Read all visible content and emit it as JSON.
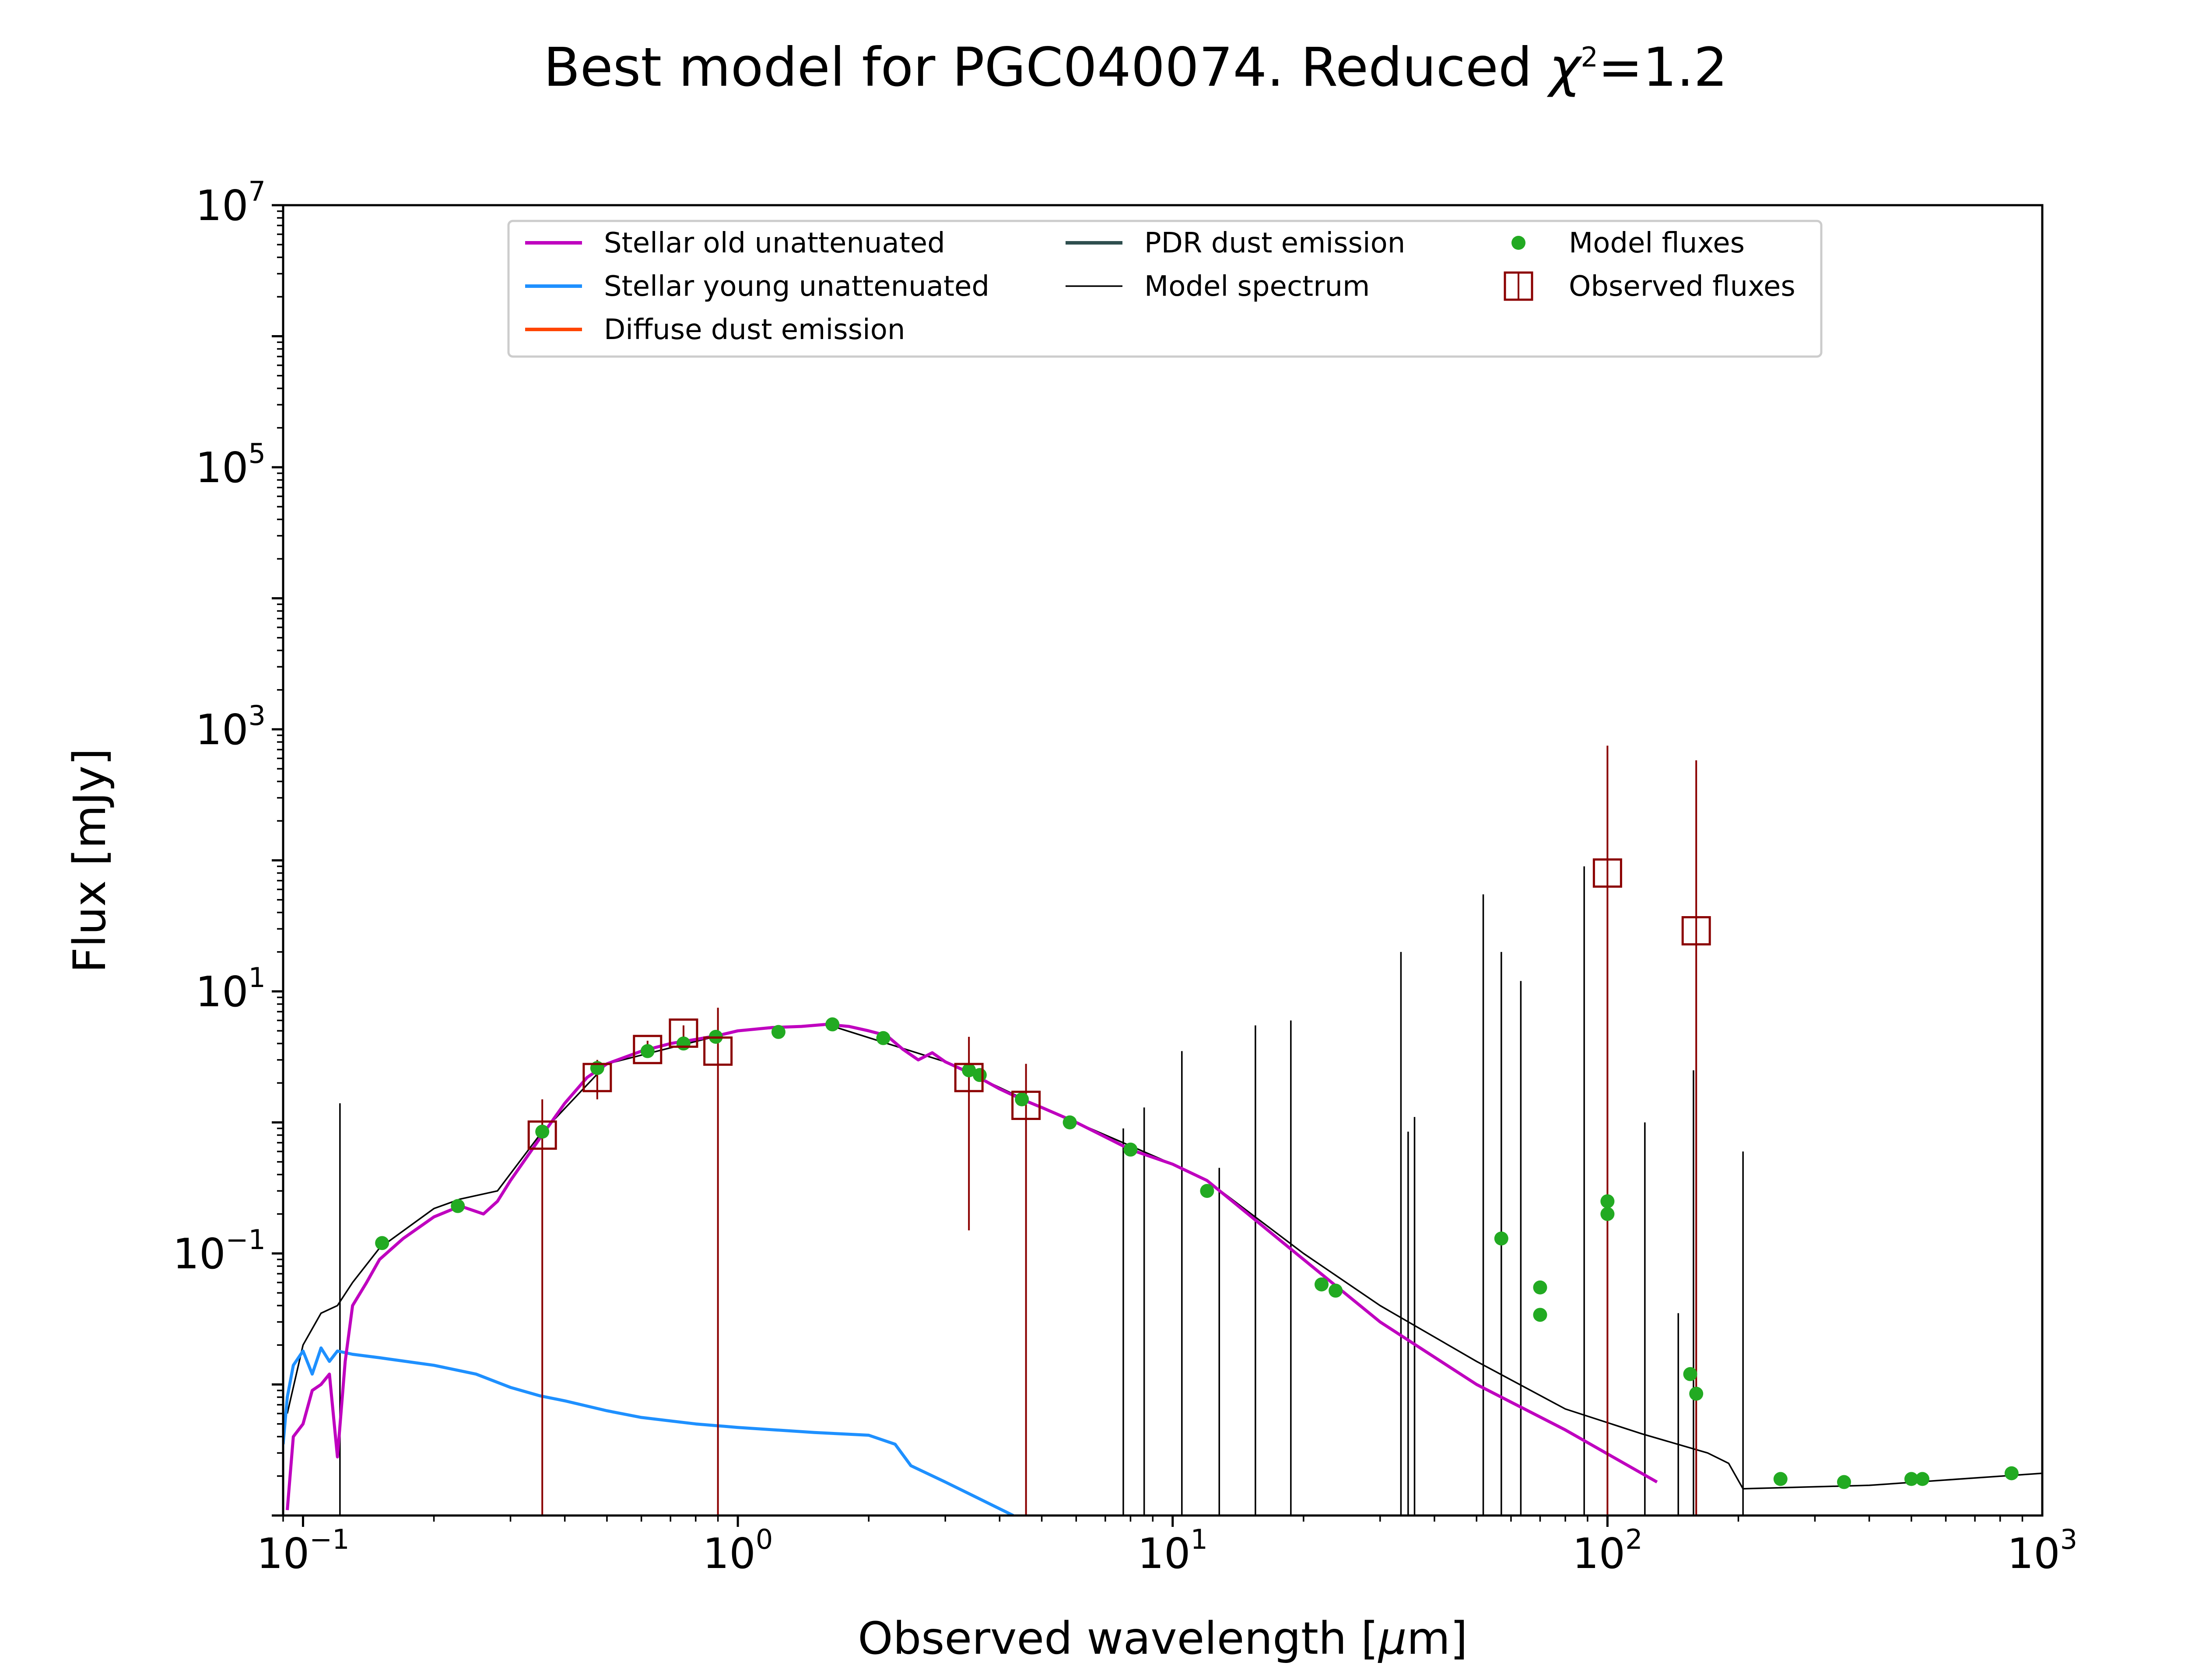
{
  "chart_data": {
    "type": "line",
    "title": {
      "prefix": "Best model for PGC040074. Reduced ",
      "chi": "χ",
      "sup": "2",
      "suffix": "=1.2"
    },
    "xlabel": {
      "main": "Observed wavelength [",
      "mu": "μ",
      "unit": "m]"
    },
    "ylabel": "Flux [mJy]",
    "xscale": "log",
    "yscale": "log",
    "xlim": [
      0.09,
      1000
    ],
    "ylim": [
      0.001,
      10000000
    ],
    "xticks": [
      {
        "value": 0.1,
        "base": "10",
        "exp": "−1"
      },
      {
        "value": 1,
        "base": "10",
        "exp": "0"
      },
      {
        "value": 10,
        "base": "10",
        "exp": "1"
      },
      {
        "value": 100,
        "base": "10",
        "exp": "2"
      },
      {
        "value": 1000,
        "base": "10",
        "exp": "3"
      }
    ],
    "yticks": [
      {
        "value": 0.1,
        "base": "10",
        "exp": "−1"
      },
      {
        "value": 10,
        "base": "10",
        "exp": "1"
      },
      {
        "value": 1000,
        "base": "10",
        "exp": "3"
      },
      {
        "value": 100000,
        "base": "10",
        "exp": "5"
      },
      {
        "value": 10000000,
        "base": "10",
        "exp": "7"
      }
    ],
    "legend": {
      "placement": "upper center",
      "entries": [
        {
          "label": "Stellar old unattenuated",
          "kind": "line",
          "color": "#bf00bf"
        },
        {
          "label": "Stellar young unattenuated",
          "kind": "line",
          "color": "#1e90ff"
        },
        {
          "label": "Diffuse dust emission",
          "kind": "line",
          "color": "#ff4500"
        },
        {
          "label": "PDR dust emission",
          "kind": "line",
          "color": "#2f4f4f"
        },
        {
          "label": "Model spectrum",
          "kind": "thin-line",
          "color": "#000000"
        },
        {
          "label": "Model fluxes",
          "kind": "dot",
          "color": "#22aa22"
        },
        {
          "label": "Observed fluxes",
          "kind": "square",
          "color": "#8b0000"
        }
      ]
    },
    "series": [
      {
        "name": "Stellar old unattenuated",
        "color": "#bf00bf",
        "points": [
          [
            0.092,
            0.0011
          ],
          [
            0.095,
            0.004
          ],
          [
            0.1,
            0.005
          ],
          [
            0.105,
            0.009
          ],
          [
            0.11,
            0.01
          ],
          [
            0.115,
            0.012
          ],
          [
            0.12,
            0.0028
          ],
          [
            0.125,
            0.015
          ],
          [
            0.13,
            0.04
          ],
          [
            0.14,
            0.06
          ],
          [
            0.15,
            0.09
          ],
          [
            0.17,
            0.13
          ],
          [
            0.2,
            0.19
          ],
          [
            0.23,
            0.23
          ],
          [
            0.26,
            0.2
          ],
          [
            0.28,
            0.25
          ],
          [
            0.3,
            0.36
          ],
          [
            0.35,
            0.75
          ],
          [
            0.4,
            1.4
          ],
          [
            0.45,
            2.2
          ],
          [
            0.5,
            2.8
          ],
          [
            0.6,
            3.5
          ],
          [
            0.7,
            4.0
          ],
          [
            0.8,
            4.3
          ],
          [
            0.9,
            4.6
          ],
          [
            1.0,
            5.0
          ],
          [
            1.2,
            5.3
          ],
          [
            1.4,
            5.4
          ],
          [
            1.6,
            5.6
          ],
          [
            1.8,
            5.4
          ],
          [
            2.0,
            5.0
          ],
          [
            2.2,
            4.6
          ],
          [
            2.4,
            3.6
          ],
          [
            2.6,
            3.0
          ],
          [
            2.8,
            3.4
          ],
          [
            3.0,
            2.9
          ],
          [
            3.5,
            2.3
          ],
          [
            4.0,
            1.8
          ],
          [
            4.5,
            1.5
          ],
          [
            5.0,
            1.3
          ],
          [
            6.0,
            1.0
          ],
          [
            8.0,
            0.62
          ],
          [
            10.0,
            0.48
          ],
          [
            12.0,
            0.36
          ],
          [
            20.0,
            0.09
          ],
          [
            30.0,
            0.03
          ],
          [
            50.0,
            0.01
          ],
          [
            80.0,
            0.0045
          ],
          [
            130.0,
            0.0018
          ]
        ]
      },
      {
        "name": "Stellar young unattenuated",
        "color": "#1e90ff",
        "points": [
          [
            0.09,
            0.0035
          ],
          [
            0.092,
            0.008
          ],
          [
            0.095,
            0.014
          ],
          [
            0.1,
            0.018
          ],
          [
            0.105,
            0.012
          ],
          [
            0.11,
            0.019
          ],
          [
            0.115,
            0.015
          ],
          [
            0.12,
            0.018
          ],
          [
            0.13,
            0.017
          ],
          [
            0.15,
            0.016
          ],
          [
            0.2,
            0.014
          ],
          [
            0.25,
            0.012
          ],
          [
            0.3,
            0.0095
          ],
          [
            0.35,
            0.0082
          ],
          [
            0.4,
            0.0075
          ],
          [
            0.5,
            0.0063
          ],
          [
            0.6,
            0.0056
          ],
          [
            0.8,
            0.005
          ],
          [
            1.0,
            0.0047
          ],
          [
            1.5,
            0.0043
          ],
          [
            2.0,
            0.0041
          ],
          [
            2.3,
            0.0035
          ],
          [
            2.5,
            0.0024
          ],
          [
            3.0,
            0.0018
          ],
          [
            3.5,
            0.0014
          ],
          [
            4.3,
            0.001
          ]
        ]
      },
      {
        "name": "Model spectrum",
        "color": "#000000",
        "points": [
          [
            0.092,
            0.006
          ],
          [
            0.1,
            0.02
          ],
          [
            0.11,
            0.035
          ],
          [
            0.12,
            0.04
          ],
          [
            0.13,
            0.06
          ],
          [
            0.15,
            0.11
          ],
          [
            0.2,
            0.22
          ],
          [
            0.23,
            0.26
          ],
          [
            0.28,
            0.3
          ],
          [
            0.35,
            0.8
          ],
          [
            0.5,
            2.8
          ],
          [
            1.0,
            5.0
          ],
          [
            1.6,
            5.6
          ],
          [
            3.0,
            2.9
          ],
          [
            5.0,
            1.3
          ],
          [
            10.0,
            0.48
          ],
          [
            12.0,
            0.36
          ],
          [
            20.0,
            0.1
          ],
          [
            30.0,
            0.04
          ],
          [
            50.0,
            0.015
          ],
          [
            80.0,
            0.0065
          ],
          [
            120.0,
            0.0042
          ],
          [
            170.0,
            0.003
          ],
          [
            190.0,
            0.0025
          ],
          [
            205.0,
            0.0016
          ],
          [
            400.0,
            0.0017
          ],
          [
            1000.0,
            0.0021
          ]
        ]
      }
    ],
    "emission_lines": [
      [
        0.1216,
        1.4
      ],
      [
        7.7,
        0.9
      ],
      [
        8.6,
        1.3
      ],
      [
        10.5,
        3.5
      ],
      [
        12.8,
        0.45
      ],
      [
        15.5,
        5.5
      ],
      [
        18.7,
        6.0
      ],
      [
        33.5,
        20
      ],
      [
        34.8,
        0.85
      ],
      [
        36.0,
        1.1
      ],
      [
        51.8,
        55
      ],
      [
        57.0,
        20
      ],
      [
        63.2,
        12
      ],
      [
        88.4,
        90
      ],
      [
        121.9,
        1.0
      ],
      [
        145.5,
        0.035
      ],
      [
        157.7,
        2.5
      ],
      [
        205.0,
        0.6
      ]
    ],
    "model_fluxes": [
      [
        0.152,
        0.12
      ],
      [
        0.227,
        0.23
      ],
      [
        0.355,
        0.85
      ],
      [
        0.475,
        2.6
      ],
      [
        0.62,
        3.5
      ],
      [
        0.75,
        4.0
      ],
      [
        0.89,
        4.5
      ],
      [
        1.24,
        4.9
      ],
      [
        1.65,
        5.6
      ],
      [
        2.16,
        4.4
      ],
      [
        3.4,
        2.5
      ],
      [
        3.6,
        2.3
      ],
      [
        4.5,
        1.5
      ],
      [
        5.8,
        1.0
      ],
      [
        8.0,
        0.62
      ],
      [
        12.0,
        0.3
      ],
      [
        22.0,
        0.058
      ],
      [
        23.7,
        0.052
      ],
      [
        57.0,
        0.13
      ],
      [
        70.0,
        0.034
      ],
      [
        70.0,
        0.055
      ],
      [
        100.0,
        0.2
      ],
      [
        100.0,
        0.25
      ],
      [
        155.0,
        0.012
      ],
      [
        160.0,
        0.0085
      ],
      [
        250.0,
        0.0019
      ],
      [
        350.0,
        0.0018
      ],
      [
        500.0,
        0.0019
      ],
      [
        530.0,
        0.0019
      ],
      [
        850.0,
        0.0021
      ]
    ],
    "observed_fluxes": [
      {
        "x": 0.355,
        "y": 0.8,
        "ylow": 0.001,
        "yhigh": 1.5
      },
      {
        "x": 0.475,
        "y": 2.2,
        "ylow": 1.5,
        "yhigh": 3.0
      },
      {
        "x": 0.62,
        "y": 3.6,
        "ylow": 3.2,
        "yhigh": 4.2
      },
      {
        "x": 0.75,
        "y": 4.8,
        "ylow": 4.3,
        "yhigh": 5.5
      },
      {
        "x": 0.9,
        "y": 3.5,
        "ylow": 0.001,
        "yhigh": 7.5
      },
      {
        "x": 3.4,
        "y": 2.2,
        "ylow": 0.15,
        "yhigh": 4.5
      },
      {
        "x": 4.6,
        "y": 1.35,
        "ylow": 0.001,
        "yhigh": 2.8
      },
      {
        "x": 100.0,
        "y": 80.0,
        "ylow": 0.001,
        "yhigh": 750.0
      },
      {
        "x": 160.0,
        "y": 29.0,
        "ylow": 0.001,
        "yhigh": 580.0
      }
    ]
  }
}
